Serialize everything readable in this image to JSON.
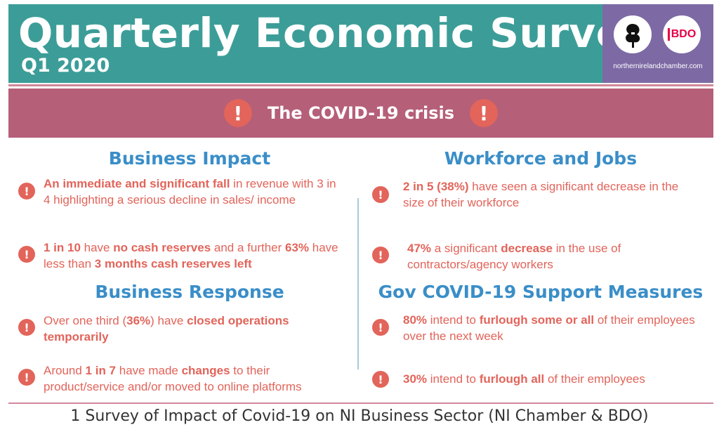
{
  "header": {
    "title": "Quarterly Economic Survey",
    "subtitle": "Q1 2020",
    "logo_url": "northernirelandchamber.com",
    "bdo_logo": "BDO"
  },
  "banner": {
    "title": "The COVID-19 crisis",
    "icon": "!"
  },
  "sections": {
    "business_impact": {
      "heading": "Business Impact",
      "item1": {
        "b1": "An immediate and significant fall",
        "t1": " in revenue with 3 in 4 highlighting a serious decline in sales/ income"
      },
      "item2": {
        "b1": "1 in 10",
        "t1": " have ",
        "b2": "no cash reserves",
        "t2": " and a further ",
        "b3": "63%",
        "t3": " have less than ",
        "b4": "3 months cash reserves left"
      }
    },
    "business_response": {
      "heading": "Business Response",
      "item1": {
        "t1": "Over one third (",
        "b1": "36%",
        "t2": ") have ",
        "b2": "closed operations temporarily"
      },
      "item2": {
        "t1": "Around ",
        "b1": "1 in 7",
        "t2": " have made ",
        "b2": "changes",
        "t3": " to their product/service and/or moved to online platforms"
      }
    },
    "workforce_jobs": {
      "heading": "Workforce and Jobs",
      "item1": {
        "b1": "2 in 5 (38%)",
        "t1": " have seen a significant decrease in the size of their workforce"
      },
      "item2": {
        "b1": "47%",
        "t1": " a significant ",
        "b2": "decrease",
        "t2": " in the use of contractors/agency workers"
      }
    },
    "gov_support": {
      "heading": "Gov COVID-19 Support Measures",
      "item1": {
        "b1": "80%",
        "t1": " intend to ",
        "b2": "furlough some or all",
        "t2": " of their employees over the next week"
      },
      "item2": {
        "b1": "30%",
        "t1": " intend to ",
        "b2": "furlough all",
        "t2": " of their employees"
      }
    }
  },
  "caption": "1 Survey of Impact of Covid-19 on NI Business Sector (NI Chamber & BDO)",
  "colors": {
    "header": "#3c9d98",
    "logo_panel": "#7d6aa4",
    "banner": "#b55f79",
    "accent": "#e2645a",
    "heading": "#3a8ec8"
  }
}
